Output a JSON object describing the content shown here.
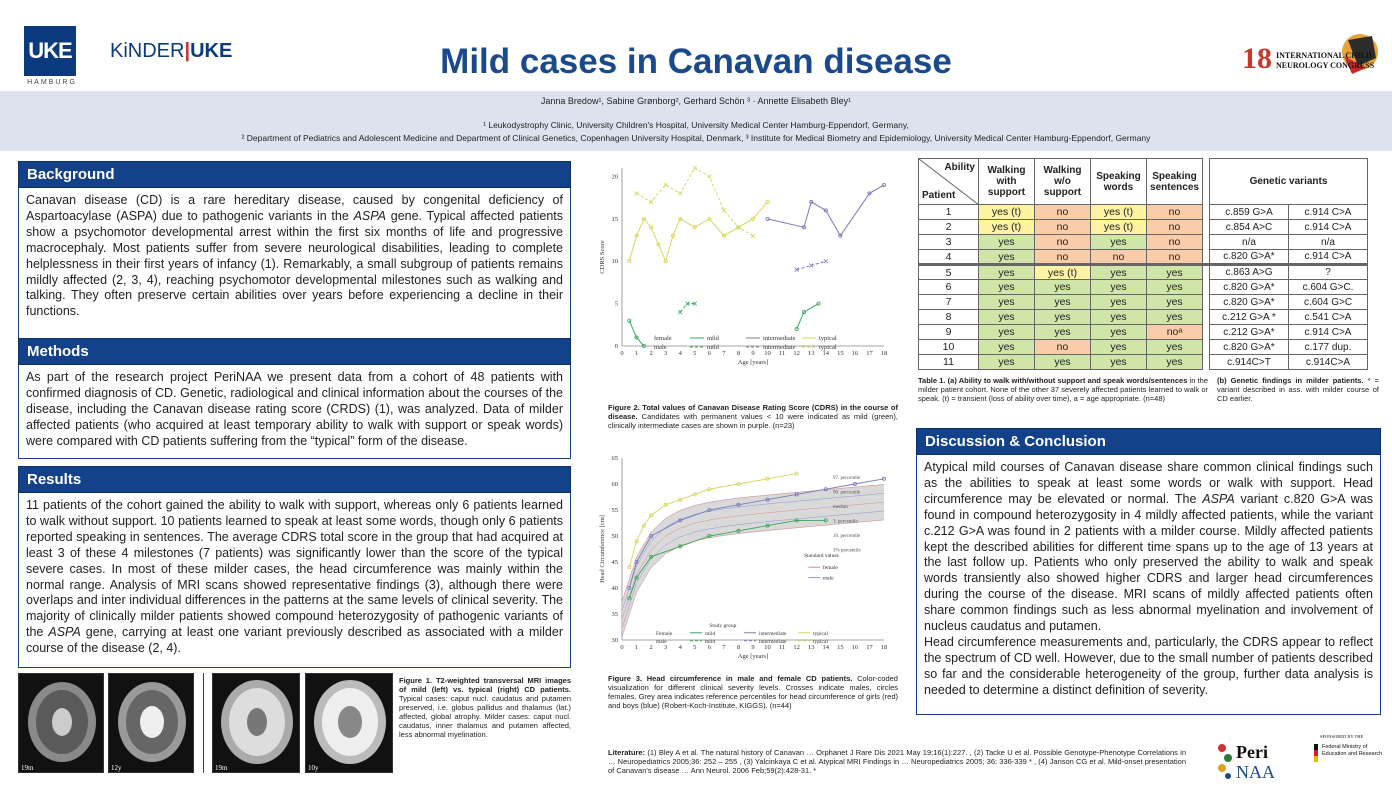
{
  "header": {
    "title": "Mild cases in Canavan disease",
    "uke_logo": "UKE",
    "uke_sub": "HAMBURG",
    "kinder_logo_a": "KiNDER",
    "kinder_logo_b": "UKE",
    "congress_logo_num": "18",
    "congress_logo_line1": "INTERNATIONAL CHILD",
    "congress_logo_line2": "NEUROLOGY CONGRESS",
    "authors": "Janna Bredow¹, Sabine Grønborg², Gerhard Schön ³ · Annette Elisabeth Bley¹",
    "affiliation1": "¹ Leukodystrophy Clinic, University Children's Hospital, University Medical Center Hamburg-Eppendorf, Germany,",
    "affiliation2": "² Department of Pediatrics and Adolescent Medicine and Department of Clinical Genetics, Copenhagen University Hospital, Denmark, ³ Institute for Medical Biometry and Epidemiology, University Medical Center Hamburg-Eppendorf, Germany"
  },
  "background": {
    "heading": "Background",
    "p1": "Canavan disease (CD) is a rare hereditary disease, caused by congenital deficiency of Aspartoacylase (ASPA) due to pathogenic variants in the ",
    "p1_ital": "ASPA",
    "p1_end": " gene. Typical affected patients show a psychomotor developmental arrest within the first six months of life and progressive macrocephaly. Most patients suffer from severe neurological disabilities, leading to complete helplessness in their first years of infancy (1). Remarkably, a small subgroup of patients remains mildly affected (2, 3, 4), reaching psychomotor developmental milestones such as walking and talking. They often preserve certain abilities over years before experiencing a decline in their functions."
  },
  "methods": {
    "heading": "Methods",
    "text": "As part of the research project PeriNAA we present data from a cohort of 48 patients with confirmed diagnosis of CD. Genetic, radiological and clinical information about the courses of the disease, including the Canavan disease rating score (CRDS) (1), was analyzed. Data of milder affected patients (who acquired at least temporary ability to walk with support or speak words) were compared with CD patients suffering from the “typical” form of the disease."
  },
  "results": {
    "heading": "Results",
    "p1": "11 patients of the cohort gained the ability to walk with support, whereas only 6 patients learned to walk without support. 10 patients learned to speak at least some words, though only 6 patients reported speaking in sentences. The average CDRS total score in the group that had acquired at least 3 of these 4 milestones (7 patients) was significantly lower than the score of the typical severe cases. In most of these milder cases, the head circumference was mainly within the normal range. Analysis of MRI scans showed representative findings (3), although there were overlaps and inter individual differences in the patterns at the same levels of clinical severity. The majority of clinically milder patients showed compound heterozygosity of pathogenic variants of the ",
    "p1_ital": "ASPA",
    "p1_end": " gene, carrying at least one variant previously described as associated with a milder course of the disease (2, 4)."
  },
  "figure1": {
    "caption_bold": "Figure 1. T2-weighted transversal MRI images of mild (left) vs. typical (right) CD patients.",
    "caption": " Typical cases: caput nucl. caudatus and putamen preserved, i.e. globus pallidus and thalamus (lat.) affected, global atrophy. Milder cases: caput nucl. caudatus, inner thalamus and putamen affected, less abnormal myelination.",
    "labels": [
      "19m",
      "12y",
      "19m",
      "10y"
    ]
  },
  "figure2": {
    "caption_bold": "Figure 2. Total values of Canavan Disease Rating Score (CDRS) in the course of disease.",
    "caption": " Candidates with permanent values < 10 were indicated as mild (green), clinically intermediate cases are shown in purple. (n=23)"
  },
  "figure3": {
    "caption_bold": "Figure 3. Head circumference in male and female CD patients.",
    "caption": " Color-coded visualization for different clinical severity levels. Crosses indicate males, circles females. Grey area indicates reference percentiles for head circumference of girls (red) and boys (blue) (Robert-Koch-Institute, KIGGS). (n=44)"
  },
  "chart_data": [
    {
      "type": "line",
      "title": "",
      "xlabel": "Age [years]",
      "ylabel": "CDRS Score",
      "xlim": [
        0,
        18
      ],
      "ylim": [
        0,
        21
      ],
      "x_ticks": [
        0,
        1,
        2,
        3,
        4,
        5,
        6,
        7,
        8,
        9,
        10,
        11,
        12,
        13,
        14,
        15,
        16,
        17,
        18
      ],
      "y_ticks": [
        0,
        5,
        10,
        15,
        20
      ],
      "legend": {
        "sex": [
          "female",
          "male"
        ],
        "groups": [
          "mild",
          "intermediate",
          "typical"
        ]
      },
      "series": [
        {
          "name": "mild",
          "sex": "female",
          "x": [
            0.5,
            1,
            1.5
          ],
          "values": [
            3,
            1,
            0
          ]
        },
        {
          "name": "mild",
          "sex": "female",
          "x": [
            12,
            12.5,
            13.5
          ],
          "values": [
            2,
            4,
            5
          ]
        },
        {
          "name": "mild",
          "sex": "male",
          "x": [
            4,
            4.5,
            5
          ],
          "values": [
            4,
            5,
            5
          ]
        },
        {
          "name": "intermediate",
          "sex": "male",
          "x": [
            12,
            13,
            14
          ],
          "values": [
            9,
            9.5,
            10
          ]
        },
        {
          "name": "intermediate",
          "sex": "female",
          "x": [
            10,
            12.5,
            13,
            14,
            15,
            17,
            18
          ],
          "values": [
            15,
            14,
            17,
            16,
            13,
            18,
            19
          ]
        },
        {
          "name": "typical",
          "sex": "female",
          "x": [
            0.5,
            1,
            1.5,
            2,
            2.5,
            3,
            3.5,
            4,
            5,
            6,
            7,
            8,
            9,
            10
          ],
          "values": [
            10,
            13,
            15,
            14,
            12,
            10,
            13,
            15,
            14,
            15,
            13,
            14,
            15,
            17
          ]
        },
        {
          "name": "typical",
          "sex": "male",
          "x": [
            1,
            2,
            3,
            4,
            5,
            6,
            7,
            8,
            9
          ],
          "values": [
            18,
            17,
            19,
            18,
            21,
            20,
            16,
            14,
            13
          ]
        }
      ]
    },
    {
      "type": "scatter",
      "title": "",
      "xlabel": "Age [years]",
      "ylabel": "Head Circumference [cm]",
      "xlim": [
        0,
        18
      ],
      "ylim": [
        30,
        65
      ],
      "x_ticks": [
        0,
        1,
        2,
        3,
        4,
        5,
        6,
        7,
        8,
        9,
        10,
        11,
        12,
        13,
        14,
        15,
        16,
        17,
        18
      ],
      "y_ticks": [
        30,
        35,
        40,
        45,
        50,
        55,
        60,
        65
      ],
      "percentiles": [
        "97. percentile",
        "90. percentile",
        "median",
        "3. percentile",
        "10. percentile",
        "3% percentile"
      ],
      "standard_values": [
        "female",
        "male"
      ],
      "legend": {
        "sex": [
          "Female",
          "male"
        ],
        "groups": [
          "mild",
          "intermediate",
          "typical"
        ],
        "title": "Study group",
        "std_title": "Standard values"
      },
      "series": [
        {
          "name": "typical",
          "x": [
            0.5,
            1,
            1.5,
            2,
            3,
            4,
            5,
            6,
            8,
            10,
            12
          ],
          "values": [
            44,
            49,
            52,
            54,
            56,
            57,
            58,
            59,
            60,
            61,
            62
          ]
        },
        {
          "name": "intermediate",
          "x": [
            0.5,
            1,
            2,
            4,
            6,
            8,
            10,
            12,
            14,
            16,
            18
          ],
          "values": [
            40,
            45,
            50,
            53,
            55,
            56,
            57,
            58,
            59,
            60,
            61
          ]
        },
        {
          "name": "mild",
          "x": [
            0.5,
            1,
            2,
            4,
            6,
            8,
            10,
            12,
            14
          ],
          "values": [
            38,
            42,
            46,
            48,
            50,
            51,
            52,
            53,
            53
          ]
        }
      ]
    }
  ],
  "table": {
    "headers": [
      "Ability",
      "Patient",
      "Walking with support",
      "Walking w/o support",
      "Speaking words",
      "Speaking sentences",
      "Genetic variants"
    ],
    "rows": [
      {
        "id": "1",
        "c": [
          "yes (t)",
          "no",
          "yes (t)",
          "no"
        ],
        "bg": [
          "y",
          "o",
          "y",
          "o"
        ],
        "g1": "c.859 G>A",
        "g2": "c.914 C>A"
      },
      {
        "id": "2",
        "c": [
          "yes (t)",
          "no",
          "yes (t)",
          "no"
        ],
        "bg": [
          "y",
          "o",
          "y",
          "o"
        ],
        "g1": "c.854 A>C",
        "g2": "c.914 C>A"
      },
      {
        "id": "3",
        "c": [
          "yes",
          "no",
          "yes",
          "no"
        ],
        "bg": [
          "g",
          "o",
          "g",
          "o"
        ],
        "g1": "n/a",
        "g2": "n/a"
      },
      {
        "id": "4",
        "c": [
          "yes",
          "no",
          "no",
          "no"
        ],
        "bg": [
          "g",
          "o",
          "o",
          "o"
        ],
        "g1": "c.820 G>A*",
        "g2": "c.914 C>A"
      },
      {
        "id": "5",
        "c": [
          "yes",
          "yes (t)",
          "yes",
          "yes"
        ],
        "bg": [
          "g",
          "y",
          "g",
          "g"
        ],
        "g1": "c.863 A>G",
        "g2": "?"
      },
      {
        "id": "6",
        "c": [
          "yes",
          "yes",
          "yes",
          "yes"
        ],
        "bg": [
          "g",
          "g",
          "g",
          "g"
        ],
        "g1": "c.820 G>A*",
        "g2": "c.604 G>C."
      },
      {
        "id": "7",
        "c": [
          "yes",
          "yes",
          "yes",
          "yes"
        ],
        "bg": [
          "g",
          "g",
          "g",
          "g"
        ],
        "g1": "c.820 G>A*",
        "g2": "c.604 G>C"
      },
      {
        "id": "8",
        "c": [
          "yes",
          "yes",
          "yes",
          "yes"
        ],
        "bg": [
          "g",
          "g",
          "g",
          "g"
        ],
        "g1": "c.212 G>A *",
        "g2": "c.541 C>A"
      },
      {
        "id": "9",
        "c": [
          "yes",
          "yes",
          "yes",
          "noᵃ"
        ],
        "bg": [
          "g",
          "g",
          "g",
          "o"
        ],
        "g1": "c.212 G>A*",
        "g2": "c.914 C>A"
      },
      {
        "id": "10",
        "c": [
          "yes",
          "no",
          "yes",
          "yes"
        ],
        "bg": [
          "g",
          "o",
          "g",
          "g"
        ],
        "g1": "c.820 G>A*",
        "g2": "c.177 dup."
      },
      {
        "id": "11",
        "c": [
          "yes",
          "yes",
          "yes",
          "yes"
        ],
        "bg": [
          "g",
          "g",
          "g",
          "g"
        ],
        "g1": "c.914C>T",
        "g2": "c.914C>A"
      }
    ],
    "caption_a_bold": "Table 1. (a) Ability to walk with/without support and speak words/sentences",
    "caption_a": " in the milder patient cohort. None of the other 37 severely affected patients learned to walk or speak.  (t) = transient (loss of ability over time), a = age appropriate. (n=48)",
    "caption_b_bold": "(b) Genetic findings in milder patients.",
    "caption_b": " * = variant described in ass. with milder course of CD earlier."
  },
  "discussion": {
    "heading": "Discussion & Conclusion",
    "p1": "Atypical mild courses of Canavan disease share common clinical findings such as the abilities to speak at least some words or walk with support. Head circumference may be elevated or normal. The ",
    "p1_ital": "ASPA",
    "p1_end": " variant c.820 G>A was found in compound heterozygosity in 4 mildly affected patients, while the variant c.212 G>A was found in 2 patients with a milder course. Mildly affected patients kept the described abilities for different time spans up to the age of 13 years at the last follow up. Patients who only preserved the ability to walk and speak words transiently also showed higher CDRS and larger head circumferences during the course of the disease. MRI scans of mildly affected patients often share common findings such as less abnormal myelination and involvement of nucleus caudatus and putamen.",
    "p2": "Head circumference measurements and, particularly, the CDRS appear to reflect the spectrum of CD well. However, due to the small number of patients described so far and the considerable heterogeneity of the group, further data analysis is needed to determine a distinct definition of severity."
  },
  "literature": {
    "label": "Literature:",
    "text": " (1) Bley A et al. The natural history of Canavan … Orphanet J Rare Dis 2021 May 19;16(1):227. , (2) Tacke U et al. Possible Genotype-Phenotype Correlations in … Neuropediatrics 2005;36: 252 – 255 , (3) Yalcinkaya C et al. Atypical MRI Findings in … Neuropediatrics 2005; 36: 336-339 * , (4) Janson CG et al. Mild-onset presentation of Canavan's disease … Ann Neurol. 2006 Feb;59(2):428-31. *"
  },
  "sponsor": {
    "perinaa_top": "Peri",
    "perinaa_bottom": "NAA",
    "sponsored_by": "SPONSORED BY THE",
    "ministry": "Federal Ministry of Education and Research"
  },
  "colors": {
    "primary": "#13418a",
    "mild": "#3aa55a",
    "intermediate": "#7a7ab8",
    "typical": "#d8d65a"
  }
}
